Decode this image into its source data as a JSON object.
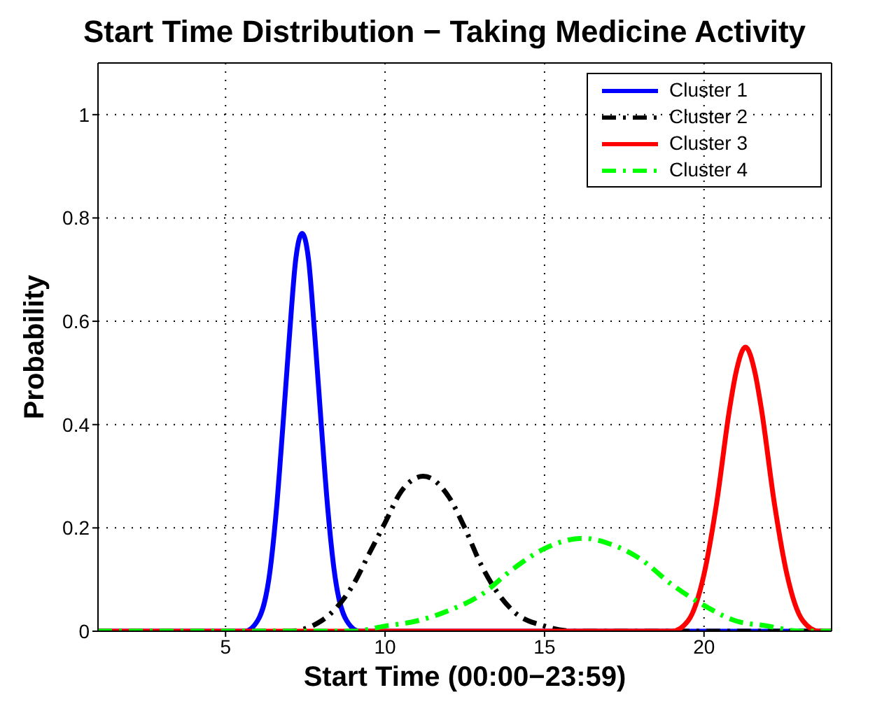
{
  "chart_data": {
    "type": "line",
    "title": "Start Time Distribution − Taking Medicine Activity",
    "xlabel": "Start Time (00:00−23:59)",
    "ylabel": "Probability",
    "xlim": [
      1,
      24
    ],
    "xticks": [
      5,
      10,
      15,
      20
    ],
    "ylim": [
      0,
      1.1
    ],
    "yticks": [
      0,
      0.2,
      0.4,
      0.6,
      0.8,
      1
    ],
    "grid": true,
    "legend": "top right",
    "marker": "none",
    "series": [
      {
        "name": "Cluster 1",
        "color": "#0000ff",
        "line_style": "solid",
        "x": [
          1,
          5.6,
          6,
          6.4,
          6.6,
          6.8,
          7,
          7.2,
          7.4,
          7.6,
          7.8,
          8,
          8.2,
          8.4,
          8.8,
          9.2,
          24
        ],
        "values": [
          0,
          0,
          0.02,
          0.12,
          0.24,
          0.4,
          0.57,
          0.72,
          0.77,
          0.72,
          0.57,
          0.4,
          0.24,
          0.12,
          0.02,
          0,
          0
        ]
      },
      {
        "name": "Cluster 2",
        "color": "#000000",
        "line_style": "dashed",
        "x": [
          1,
          7,
          8,
          9,
          9.5,
          10,
          10.5,
          11.2,
          12,
          12.5,
          13,
          14,
          15,
          16,
          24
        ],
        "values": [
          0,
          0,
          0.02,
          0.09,
          0.15,
          0.21,
          0.27,
          0.3,
          0.26,
          0.2,
          0.13,
          0.04,
          0.01,
          0,
          0
        ]
      },
      {
        "name": "Cluster 3",
        "color": "#ff0000",
        "line_style": "solid",
        "x": [
          1,
          19,
          19.5,
          20,
          20.4,
          20.8,
          21,
          21.3,
          21.6,
          21.8,
          22.2,
          22.6,
          23.1,
          23.6,
          24
        ],
        "values": [
          0,
          0,
          0.02,
          0.11,
          0.25,
          0.43,
          0.5,
          0.55,
          0.5,
          0.43,
          0.25,
          0.11,
          0.02,
          0,
          0
        ]
      },
      {
        "name": "Cluster 4",
        "color": "#00ff00",
        "line_style": "dashed",
        "x": [
          1,
          9,
          10,
          11,
          12,
          13,
          14,
          15,
          16.2,
          17,
          18,
          19,
          20,
          21,
          22,
          23,
          24
        ],
        "values": [
          0,
          0,
          0.01,
          0.02,
          0.04,
          0.07,
          0.12,
          0.16,
          0.18,
          0.17,
          0.14,
          0.09,
          0.05,
          0.02,
          0.01,
          0,
          0
        ]
      }
    ]
  }
}
